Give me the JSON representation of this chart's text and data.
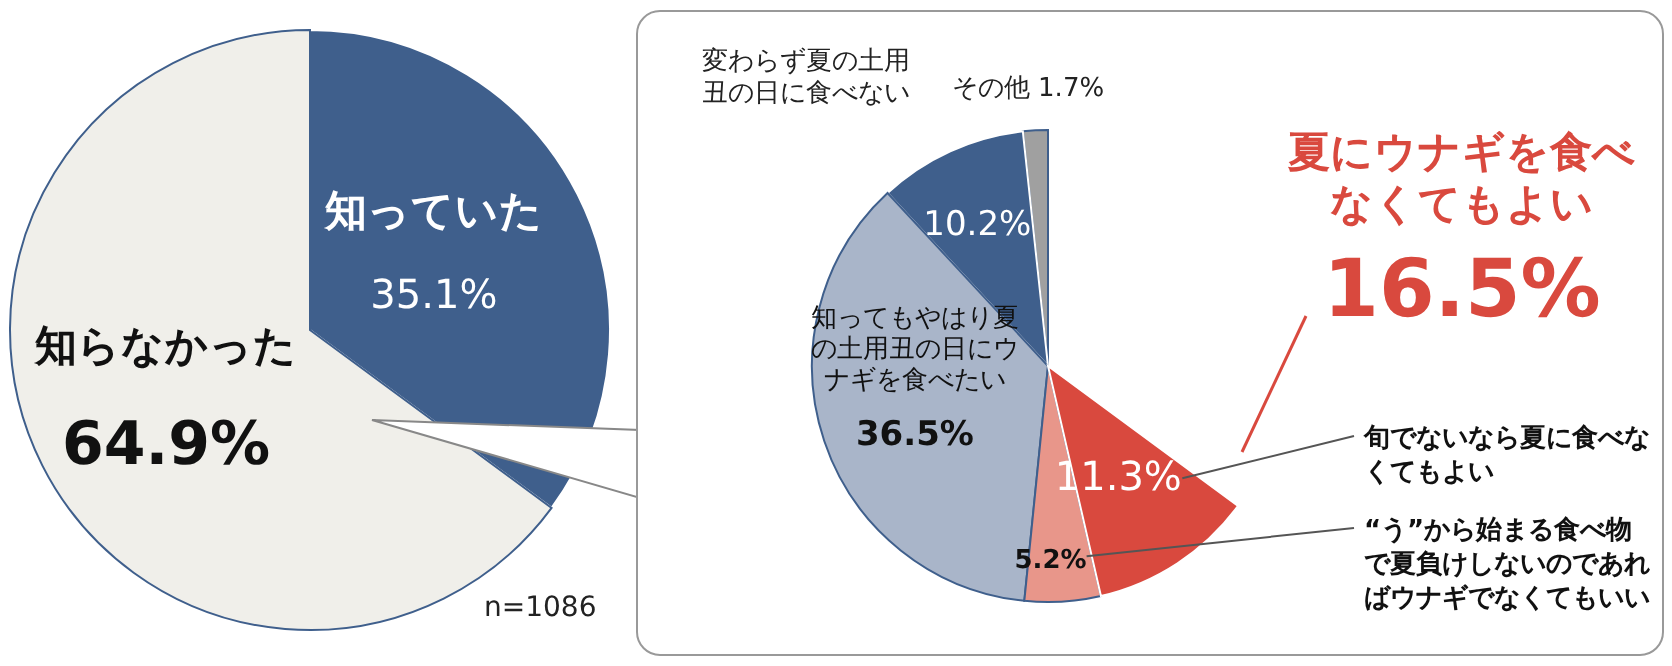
{
  "chart_data": [
    {
      "type": "pie",
      "categories": [
        "知っていた",
        "知らなかった"
      ],
      "values": [
        35.1,
        64.9
      ],
      "colors": [
        "#3f5f8c",
        "#f0efea"
      ],
      "value_labels": [
        "35.1%",
        "64.9%"
      ],
      "annotations": [
        "n=1086"
      ]
    },
    {
      "type": "pie",
      "categories": [
        "その他",
        "変わらず夏の土用丑の日に食べない",
        "知ってもやはり夏の土用丑の日にウナギを食べたい",
        "“う”から始まる食べ物で夏負けしないのであればウナギでなくてもいい",
        "旬でないなら夏に食べなくてもよい"
      ],
      "values": [
        1.7,
        10.2,
        36.5,
        5.2,
        11.3
      ],
      "colors": [
        "#a0a0a0",
        "#3f5f8c",
        "#a9b5c9",
        "#e8968a",
        "#d9493e"
      ],
      "value_labels": [
        "1.7%",
        "10.2%",
        "36.5%",
        "5.2%",
        "11.3%"
      ],
      "annotations": [
        "夏にウナギを食べなくてもよい",
        "16.5%"
      ]
    }
  ]
}
